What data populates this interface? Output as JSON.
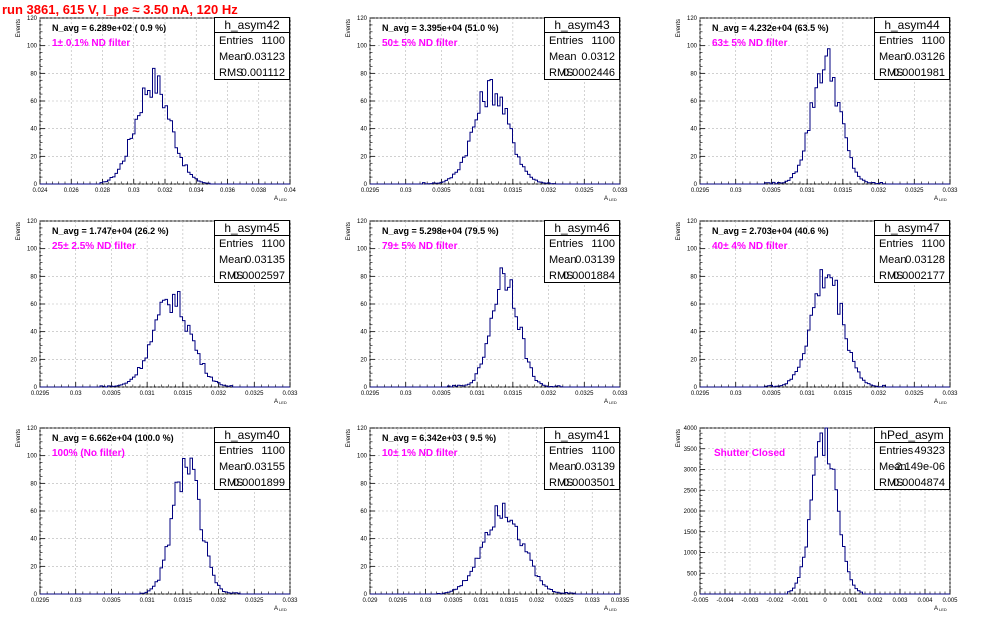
{
  "run_title": "run 3861,   615 V, I_pe ≈ 3.50 nA, 120 Hz",
  "y_label": "Events",
  "x_label": "A",
  "x_label_sub": "LED",
  "stat_keys": {
    "entries": "Entries",
    "mean": "Mean",
    "rms": "RMS"
  },
  "colors": {
    "histogram": "#000080",
    "title": "#ff0000",
    "filter_label": "#ff00ff",
    "grid": "#b4b4b4"
  },
  "chart_data": [
    {
      "type": "histogram",
      "name": "h_asym42",
      "n_avg": "N_avg = 6.289e+02 ( 0.9 %)",
      "filter": "1± 0.1% ND filter",
      "stats": {
        "entries": "1100",
        "mean": "0.03123",
        "rms": "0.001112"
      },
      "grid": true,
      "xlim": [
        0.024,
        0.04
      ],
      "ylim": [
        0,
        120
      ],
      "xticks": [
        "0.024",
        "0.026",
        "0.028",
        "0.03",
        "0.032",
        "0.034",
        "0.036",
        "0.038",
        "0.04"
      ],
      "yticks": [
        "0",
        "20",
        "40",
        "60",
        "80",
        "100",
        "120"
      ],
      "peak": {
        "mean": 0.03123,
        "rms": 0.001112,
        "height": 76,
        "range": [
          0.0278,
          0.0348
        ]
      }
    },
    {
      "type": "histogram",
      "name": "h_asym43",
      "n_avg": "N_avg = 3.395e+04 (51.0 %)",
      "filter": "50± 5% ND filter",
      "stats": {
        "entries": "1100",
        "mean": "0.0312",
        "rms": "0.0002446"
      },
      "grid": true,
      "xlim": [
        0.0295,
        0.033
      ],
      "ylim": [
        0,
        120
      ],
      "xticks": [
        "0.0295",
        "0.03",
        "0.0305",
        "0.031",
        "0.0315",
        "0.032",
        "0.0325",
        "0.033"
      ],
      "yticks": [
        "0",
        "20",
        "40",
        "60",
        "80",
        "100",
        "120"
      ],
      "peak": {
        "mean": 0.0312,
        "rms": 0.0002446,
        "height": 70,
        "range": [
          0.03025,
          0.0321
        ]
      }
    },
    {
      "type": "histogram",
      "name": "h_asym44",
      "n_avg": "N_avg = 4.232e+04 (63.5 %)",
      "filter": "63± 5% ND filter",
      "stats": {
        "entries": "1100",
        "mean": "0.03126",
        "rms": "0.0001981"
      },
      "grid": true,
      "xlim": [
        0.0295,
        0.033
      ],
      "ylim": [
        0,
        120
      ],
      "xticks": [
        "0.0295",
        "0.03",
        "0.0305",
        "0.031",
        "0.0315",
        "0.032",
        "0.0325",
        "0.033"
      ],
      "yticks": [
        "0",
        "20",
        "40",
        "60",
        "80",
        "100",
        "120"
      ],
      "peak": {
        "mean": 0.03126,
        "rms": 0.0001981,
        "height": 90,
        "range": [
          0.0304,
          0.0321
        ]
      }
    },
    {
      "type": "histogram",
      "name": "h_asym45",
      "n_avg": "N_avg = 1.747e+04 (26.2 %)",
      "filter": "25± 2.5% ND filter",
      "stats": {
        "entries": "1100",
        "mean": "0.03135",
        "rms": "0.0002597"
      },
      "grid": true,
      "xlim": [
        0.0295,
        0.033
      ],
      "ylim": [
        0,
        120
      ],
      "xticks": [
        "0.0295",
        "0.03",
        "0.0305",
        "0.031",
        "0.0315",
        "0.032",
        "0.0325",
        "0.033"
      ],
      "yticks": [
        "0",
        "20",
        "40",
        "60",
        "80",
        "100",
        "120"
      ],
      "peak": {
        "mean": 0.03135,
        "rms": 0.0002597,
        "height": 65,
        "range": [
          0.03035,
          0.0322
        ]
      }
    },
    {
      "type": "histogram",
      "name": "h_asym46",
      "n_avg": "N_avg = 5.298e+04 (79.5 %)",
      "filter": "79± 5% ND filter",
      "stats": {
        "entries": "1100",
        "mean": "0.03139",
        "rms": "0.0001884"
      },
      "grid": true,
      "xlim": [
        0.0295,
        0.033
      ],
      "ylim": [
        0,
        120
      ],
      "xticks": [
        "0.0295",
        "0.03",
        "0.0305",
        "0.031",
        "0.0315",
        "0.032",
        "0.0325",
        "0.033"
      ],
      "yticks": [
        "0",
        "20",
        "40",
        "60",
        "80",
        "100",
        "120"
      ],
      "peak": {
        "mean": 0.03139,
        "rms": 0.0001884,
        "height": 84,
        "range": [
          0.0306,
          0.0322
        ]
      }
    },
    {
      "type": "histogram",
      "name": "h_asym47",
      "n_avg": "N_avg = 2.703e+04 (40.6 %)",
      "filter": "40± 4% ND filter",
      "stats": {
        "entries": "1100",
        "mean": "0.03128",
        "rms": "0.0002177"
      },
      "grid": true,
      "xlim": [
        0.0295,
        0.033
      ],
      "ylim": [
        0,
        120
      ],
      "xticks": [
        "0.0295",
        "0.03",
        "0.0305",
        "0.031",
        "0.0315",
        "0.032",
        "0.0325",
        "0.033"
      ],
      "yticks": [
        "0",
        "20",
        "40",
        "60",
        "80",
        "100",
        "120"
      ],
      "peak": {
        "mean": 0.03128,
        "rms": 0.0002177,
        "height": 83,
        "range": [
          0.0304,
          0.0321
        ]
      }
    },
    {
      "type": "histogram",
      "name": "h_asym40",
      "n_avg": "N_avg = 6.662e+04 (100.0 %)",
      "filter": "100% (No filter)",
      "stats": {
        "entries": "1100",
        "mean": "0.03155",
        "rms": "0.0001899"
      },
      "grid": true,
      "xlim": [
        0.0295,
        0.033
      ],
      "ylim": [
        0,
        120
      ],
      "xticks": [
        "0.0295",
        "0.03",
        "0.0305",
        "0.031",
        "0.0315",
        "0.032",
        "0.0325",
        "0.033"
      ],
      "yticks": [
        "0",
        "20",
        "40",
        "60",
        "80",
        "100",
        "120"
      ],
      "peak": {
        "mean": 0.03155,
        "rms": 0.0001899,
        "height": 96,
        "range": [
          0.0309,
          0.0323
        ]
      }
    },
    {
      "type": "histogram",
      "name": "h_asym41",
      "n_avg": "N_avg = 6.342e+03 ( 9.5 %)",
      "filter": "10± 1% ND filter",
      "stats": {
        "entries": "1100",
        "mean": "0.03139",
        "rms": "0.0003501"
      },
      "grid": true,
      "xlim": [
        0.029,
        0.0335
      ],
      "ylim": [
        0,
        120
      ],
      "xticks": [
        "0.029",
        "0.0295",
        "0.03",
        "0.0305",
        "0.031",
        "0.0315",
        "0.032",
        "0.0325",
        "0.033",
        "0.0335"
      ],
      "yticks": [
        "0",
        "20",
        "40",
        "60",
        "80",
        "100",
        "120"
      ],
      "peak": {
        "mean": 0.03139,
        "rms": 0.0003501,
        "height": 65,
        "range": [
          0.0302,
          0.0327
        ]
      }
    },
    {
      "type": "histogram",
      "name": "hPed_asym",
      "n_avg": "",
      "filter": "Shutter Closed",
      "stats": {
        "entries": "49323",
        "mean": "-2.149e-06",
        "rms": "0.0004874"
      },
      "grid": true,
      "xlim": [
        -0.005,
        0.005
      ],
      "ylim": [
        0,
        4000
      ],
      "xticks": [
        "-0.005",
        "-0.004",
        "-0.003",
        "-0.002",
        "-0.001",
        "0",
        "0.001",
        "0.002",
        "0.003",
        "0.004",
        "0.005"
      ],
      "yticks": [
        "0",
        "500",
        "1000",
        "1500",
        "2000",
        "2500",
        "3000",
        "3500",
        "4000"
      ],
      "peak": {
        "mean": -2.1e-06,
        "rms": 0.0004874,
        "height": 4000,
        "range": [
          -0.0015,
          0.0015
        ]
      }
    }
  ]
}
